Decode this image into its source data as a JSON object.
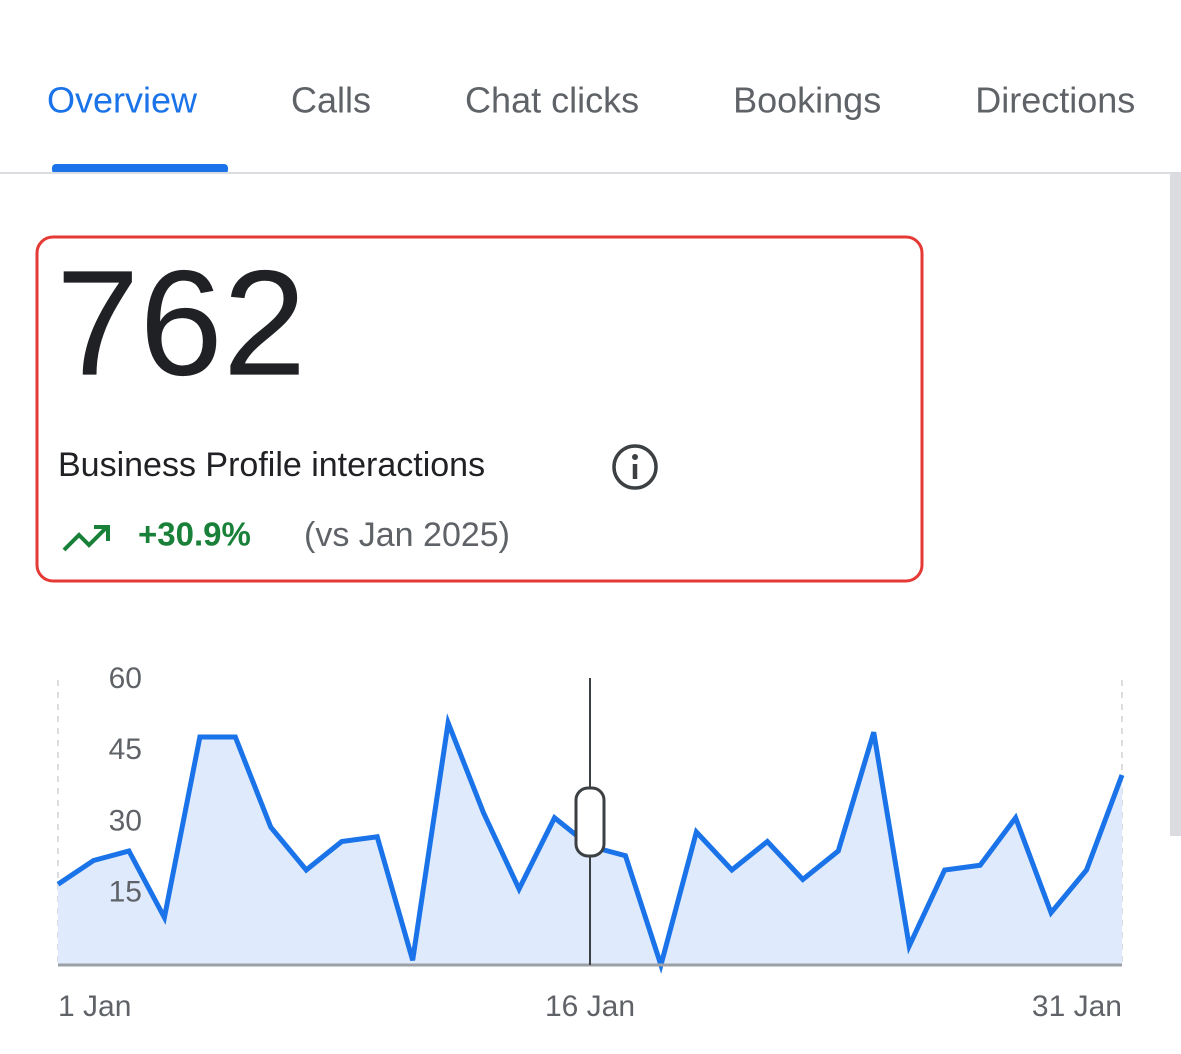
{
  "tabs": [
    "Overview",
    "Calls",
    "Chat clicks",
    "Bookings",
    "Directions"
  ],
  "metric": {
    "value": 762,
    "label": "Business Profile interactions",
    "change": "+30.9%",
    "comparison": "(vs Jan 2025)"
  },
  "chart_data": {
    "type": "area",
    "categories": [
      "1 Jan",
      null,
      null,
      null,
      null,
      null,
      null,
      null,
      null,
      null,
      null,
      null,
      null,
      null,
      null,
      "16 Jan",
      null,
      null,
      null,
      null,
      null,
      null,
      null,
      null,
      null,
      null,
      null,
      null,
      null,
      null,
      "31 Jan"
    ],
    "values": [
      17,
      22,
      24,
      10,
      48,
      48,
      29,
      20,
      26,
      27,
      1,
      51,
      32,
      16,
      31,
      25,
      23,
      0,
      28,
      20,
      26,
      18,
      24,
      49,
      4,
      20,
      21,
      31,
      11,
      20,
      40
    ],
    "color": "#1a73e8",
    "fill": "#dfeafc",
    "ylim": [
      0,
      60
    ],
    "yticks": [
      15,
      30,
      45,
      60
    ],
    "grid": false
  }
}
